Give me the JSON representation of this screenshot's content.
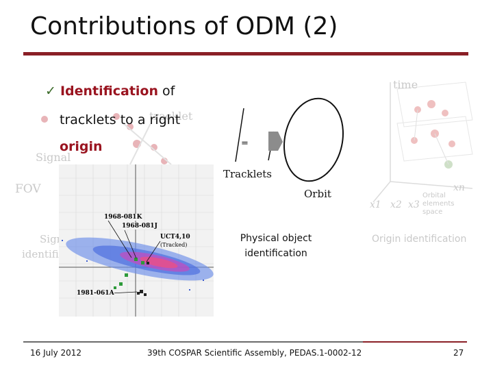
{
  "slide": {
    "title": "Contributions of ODM (2)",
    "bullet": {
      "check": "✓",
      "line1_highlight": "Identification",
      "line1_rest": " of",
      "line2": "tracklets to a right",
      "line3_highlight": "origin"
    },
    "background_faded": {
      "time": "time",
      "tracklet": "tracklet",
      "signal": "Signal",
      "fov": "FOV",
      "signal_identification_1": "Sign",
      "signal_identification_2": "identifi",
      "x1": "x1",
      "x2": "x2",
      "x3": "x3",
      "xn": "xn",
      "orbital_1": "Orbital",
      "orbital_2": "elements",
      "orbital_3": "space",
      "origin_identification": "Origin identification"
    },
    "diagram": {
      "equals": "=",
      "tracklets": "Tracklets",
      "orbit": "Orbit",
      "physical_line1": "Physical object",
      "physical_line2": "identification"
    },
    "plot": {
      "label_1968_081k": "1968-081K",
      "label_1968_081j": "1968-081J",
      "label_uct": "UCT4,10",
      "label_tracked": "(Tracked)",
      "label_1981": "1981-061A"
    },
    "footer": {
      "date": "16 July 2012",
      "event": "39th COSPAR Scientific Assembly, PEDAS.1-0002-12",
      "page": "27"
    },
    "colors": {
      "title_rule": "#8a1f26",
      "accent": "#9a1420",
      "check": "#3a6a28",
      "faded": "#c9c9c9"
    }
  }
}
